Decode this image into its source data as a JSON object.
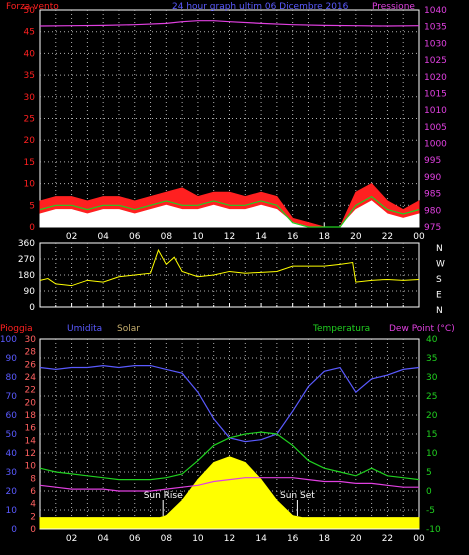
{
  "colors": {
    "red": "#ff2020",
    "blue": "#5a5aff",
    "magenta": "#e040e0",
    "green": "#20d020",
    "yellow": "#ffff00",
    "white": "#ffffff",
    "gray": "#b0b0b0",
    "tan": "#c8b070",
    "rose": "#ff6060",
    "panel_bg": "#000000"
  },
  "chart_data": [
    {
      "type": "line",
      "title": "24 hour graph ultim  06 Dicembre 2016",
      "left_axis_label": "Forza vento",
      "right_axis_label": "Pressione",
      "left_ticks": [
        0,
        5,
        10,
        15,
        20,
        25,
        30,
        35,
        40,
        45,
        50
      ],
      "right_ticks": [
        975,
        980,
        985,
        990,
        995,
        1000,
        1005,
        1010,
        1015,
        1020,
        1025,
        1030,
        1035,
        1040
      ],
      "x_ticks": [
        "02",
        "04",
        "06",
        "08",
        "10",
        "12",
        "14",
        "16",
        "18",
        "20",
        "22",
        "00"
      ],
      "x_range_hours": [
        0,
        24
      ],
      "left_range": [
        0,
        50
      ],
      "right_range": [
        975,
        1040
      ],
      "series": [
        {
          "color": "magenta",
          "axis": "right",
          "x": [
            0,
            2,
            4,
            6,
            8,
            9,
            10,
            11,
            12,
            14,
            16,
            18,
            20,
            22,
            24
          ],
          "y": [
            1035.2,
            1035.3,
            1035.4,
            1035.6,
            1036.0,
            1036.5,
            1036.8,
            1036.8,
            1036.5,
            1036.0,
            1035.6,
            1035.4,
            1035.3,
            1035.2,
            1035.3
          ]
        },
        {
          "color": "red",
          "axis": "left",
          "style": "fill",
          "x": [
            0,
            1,
            2,
            3,
            4,
            5,
            6,
            7,
            8,
            9,
            10,
            11,
            12,
            13,
            14,
            15,
            16,
            17,
            18,
            19,
            20,
            21,
            22,
            23,
            24
          ],
          "y": [
            6,
            7,
            7,
            6,
            7,
            7,
            6,
            7,
            8,
            9,
            7,
            8,
            8,
            7,
            8,
            7,
            2,
            1,
            0,
            0,
            8,
            10,
            6,
            4,
            6
          ]
        },
        {
          "color": "white",
          "axis": "left",
          "style": "fill",
          "x": [
            0,
            1,
            2,
            3,
            4,
            5,
            6,
            7,
            8,
            9,
            10,
            11,
            12,
            13,
            14,
            15,
            16,
            17,
            18,
            19,
            20,
            21,
            22,
            23,
            24
          ],
          "y": [
            3,
            4,
            4,
            3,
            4,
            4,
            3,
            4,
            5,
            4,
            4,
            5,
            4,
            4,
            5,
            4,
            1,
            0,
            0,
            0,
            4,
            6,
            3,
            2,
            3
          ]
        },
        {
          "color": "green",
          "axis": "left",
          "x": [
            0,
            1,
            2,
            3,
            4,
            5,
            6,
            7,
            8,
            9,
            10,
            11,
            12,
            13,
            14,
            15,
            16,
            17,
            18,
            19,
            20,
            21,
            22,
            23,
            24
          ],
          "y": [
            4,
            5,
            5,
            4,
            5,
            5,
            4,
            5,
            6,
            5,
            5,
            6,
            5,
            5,
            6,
            5,
            1,
            0,
            0,
            0,
            5,
            7,
            4,
            3,
            4
          ]
        }
      ]
    },
    {
      "type": "line",
      "left_ticks": [
        0,
        90,
        180,
        270,
        360
      ],
      "right_ticks": [
        "N",
        "W",
        "S",
        "E",
        "N"
      ],
      "left_range": [
        0,
        360
      ],
      "x_range_hours": [
        0,
        24
      ],
      "series": [
        {
          "color": "yellow",
          "axis": "left",
          "x": [
            0,
            0.5,
            1,
            2,
            3,
            4,
            5,
            6,
            7,
            7.5,
            8,
            8.5,
            9,
            10,
            11,
            12,
            13,
            14,
            15,
            16,
            17,
            18,
            19,
            19.8,
            20,
            21,
            22,
            23,
            24
          ],
          "y": [
            150,
            160,
            130,
            120,
            150,
            140,
            170,
            180,
            190,
            320,
            240,
            280,
            200,
            170,
            180,
            200,
            190,
            195,
            200,
            230,
            230,
            230,
            240,
            250,
            140,
            150,
            155,
            150,
            155
          ]
        }
      ]
    },
    {
      "type": "line",
      "left_axis_labels": [
        "Pioggia",
        "Umidita",
        "Solar"
      ],
      "right_axis_labels": [
        "Temperatura",
        "Dew Point (°C)"
      ],
      "rain_ticks": [
        0,
        2,
        4,
        6,
        8,
        10,
        12,
        14,
        16,
        18,
        20,
        22,
        24,
        26,
        28,
        30
      ],
      "humidity_ticks": [
        0,
        10,
        20,
        30,
        40,
        50,
        60,
        70,
        80,
        90,
        100
      ],
      "temp_ticks": [
        -10,
        -5,
        0,
        5,
        10,
        15,
        20,
        25,
        30,
        35,
        40
      ],
      "x_ticks": [
        "02",
        "04",
        "06",
        "08",
        "10",
        "12",
        "14",
        "16",
        "18",
        "20",
        "22",
        "00"
      ],
      "x_range_hours": [
        0,
        24
      ],
      "humidity_range": [
        0,
        100
      ],
      "temp_range": [
        -10,
        40
      ],
      "annotations": [
        {
          "label": "Sun Rise",
          "x": 7.8
        },
        {
          "label": "Sun Set",
          "x": 16.3
        }
      ],
      "series": [
        {
          "color": "yellow",
          "axis": "solar",
          "style": "fill",
          "x": [
            0,
            7.6,
            8,
            9,
            10,
            11,
            12,
            13,
            14,
            15,
            16,
            16.6,
            24
          ],
          "y": [
            6,
            6,
            7,
            15,
            26,
            35,
            38,
            35,
            26,
            15,
            7,
            6,
            6
          ]
        },
        {
          "color": "blue",
          "axis": "humidity",
          "x": [
            0,
            1,
            2,
            3,
            4,
            5,
            6,
            7,
            8,
            9,
            10,
            11,
            12,
            13,
            14,
            15,
            16,
            17,
            18,
            19,
            20,
            21,
            22,
            23,
            24
          ],
          "y": [
            85,
            84,
            85,
            85,
            86,
            85,
            86,
            86,
            84,
            82,
            72,
            58,
            48,
            46,
            47,
            50,
            62,
            75,
            83,
            85,
            72,
            79,
            81,
            84,
            85
          ]
        },
        {
          "color": "green",
          "axis": "temp",
          "x": [
            0,
            1,
            2,
            3,
            4,
            5,
            6,
            7,
            8,
            9,
            10,
            11,
            12,
            13,
            14,
            15,
            16,
            17,
            18,
            19,
            20,
            21,
            22,
            23,
            24
          ],
          "y": [
            6,
            5,
            4.5,
            4,
            3.5,
            3,
            3,
            3,
            3.5,
            4.5,
            8,
            12,
            14,
            15,
            15.5,
            15,
            12,
            8,
            6,
            5,
            4,
            6,
            4,
            3.5,
            3
          ]
        },
        {
          "color": "magenta",
          "axis": "temp",
          "x": [
            0,
            1,
            2,
            3,
            4,
            5,
            6,
            7,
            8,
            9,
            10,
            11,
            12,
            13,
            14,
            15,
            16,
            17,
            18,
            19,
            20,
            21,
            22,
            23,
            24
          ],
          "y": [
            1.5,
            1,
            0.5,
            0.5,
            0.5,
            0,
            0,
            0,
            0.5,
            1,
            1.5,
            2.5,
            3,
            3.5,
            3.5,
            3.5,
            3.5,
            3,
            2.5,
            2.5,
            2,
            2,
            1.5,
            1,
            1
          ]
        }
      ]
    }
  ]
}
